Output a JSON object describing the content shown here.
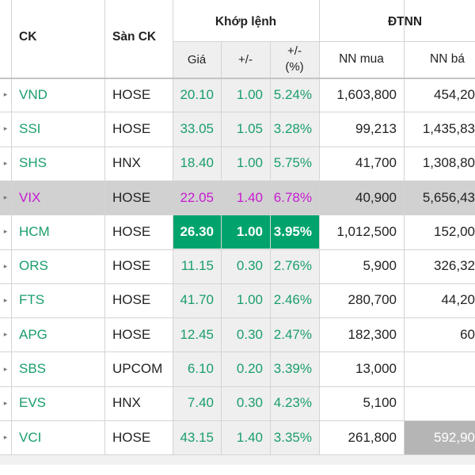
{
  "colors": {
    "up": "#1a9e6b",
    "ceiling": "#c71ccf",
    "highlight_bg": "#00a36c",
    "highlight_text": "#ffffff",
    "selected_row_bg": "#d1d1d1",
    "price_col_bg": "#efefef",
    "sell_flash_bg": "#b5b5b5"
  },
  "header": {
    "ck": "CK",
    "san_ck": "Sàn CK",
    "khop_lenh": "Khớp lệnh",
    "gia": "Giá",
    "change": "+/-",
    "change_pct": "+/-\n(%)",
    "dtnn": "ĐTNN",
    "nn_mua": "NN mua",
    "nn_ban": "NN bá"
  },
  "rows": [
    {
      "symbol": "VND",
      "exchange": "HOSE",
      "price": "20.10",
      "change": "1.00",
      "pct": "5.24%",
      "nn_buy": "1,603,800",
      "nn_sell": "454,20",
      "status": "up"
    },
    {
      "symbol": "SSI",
      "exchange": "HOSE",
      "price": "33.05",
      "change": "1.05",
      "pct": "3.28%",
      "nn_buy": "99,213",
      "nn_sell": "1,435,83",
      "status": "up"
    },
    {
      "symbol": "SHS",
      "exchange": "HNX",
      "price": "18.40",
      "change": "1.00",
      "pct": "5.75%",
      "nn_buy": "41,700",
      "nn_sell": "1,308,80",
      "status": "up"
    },
    {
      "symbol": "VIX",
      "exchange": "HOSE",
      "price": "22.05",
      "change": "1.40",
      "pct": "6.78%",
      "nn_buy": "40,900",
      "nn_sell": "5,656,43",
      "status": "ceiling"
    },
    {
      "symbol": "HCM",
      "exchange": "HOSE",
      "price": "26.30",
      "change": "1.00",
      "pct": "3.95%",
      "nn_buy": "1,012,500",
      "nn_sell": "152,00",
      "status": "up"
    },
    {
      "symbol": "ORS",
      "exchange": "HOSE",
      "price": "11.15",
      "change": "0.30",
      "pct": "2.76%",
      "nn_buy": "5,900",
      "nn_sell": "326,32",
      "status": "up"
    },
    {
      "symbol": "FTS",
      "exchange": "HOSE",
      "price": "41.70",
      "change": "1.00",
      "pct": "2.46%",
      "nn_buy": "280,700",
      "nn_sell": "44,20",
      "status": "up"
    },
    {
      "symbol": "APG",
      "exchange": "HOSE",
      "price": "12.45",
      "change": "0.30",
      "pct": "2.47%",
      "nn_buy": "182,300",
      "nn_sell": "60",
      "status": "up"
    },
    {
      "symbol": "SBS",
      "exchange": "UPCOM",
      "price": "6.10",
      "change": "0.20",
      "pct": "3.39%",
      "nn_buy": "13,000",
      "nn_sell": "",
      "status": "up"
    },
    {
      "symbol": "EVS",
      "exchange": "HNX",
      "price": "7.40",
      "change": "0.30",
      "pct": "4.23%",
      "nn_buy": "5,100",
      "nn_sell": "",
      "status": "up"
    },
    {
      "symbol": "VCI",
      "exchange": "HOSE",
      "price": "43.15",
      "change": "1.40",
      "pct": "3.35%",
      "nn_buy": "261,800",
      "nn_sell": "592,90",
      "status": "up"
    }
  ],
  "selected_row": 3,
  "highlighted_row": 4,
  "sell_flash_row": 10,
  "row_expand_icon": "caret-right-icon"
}
